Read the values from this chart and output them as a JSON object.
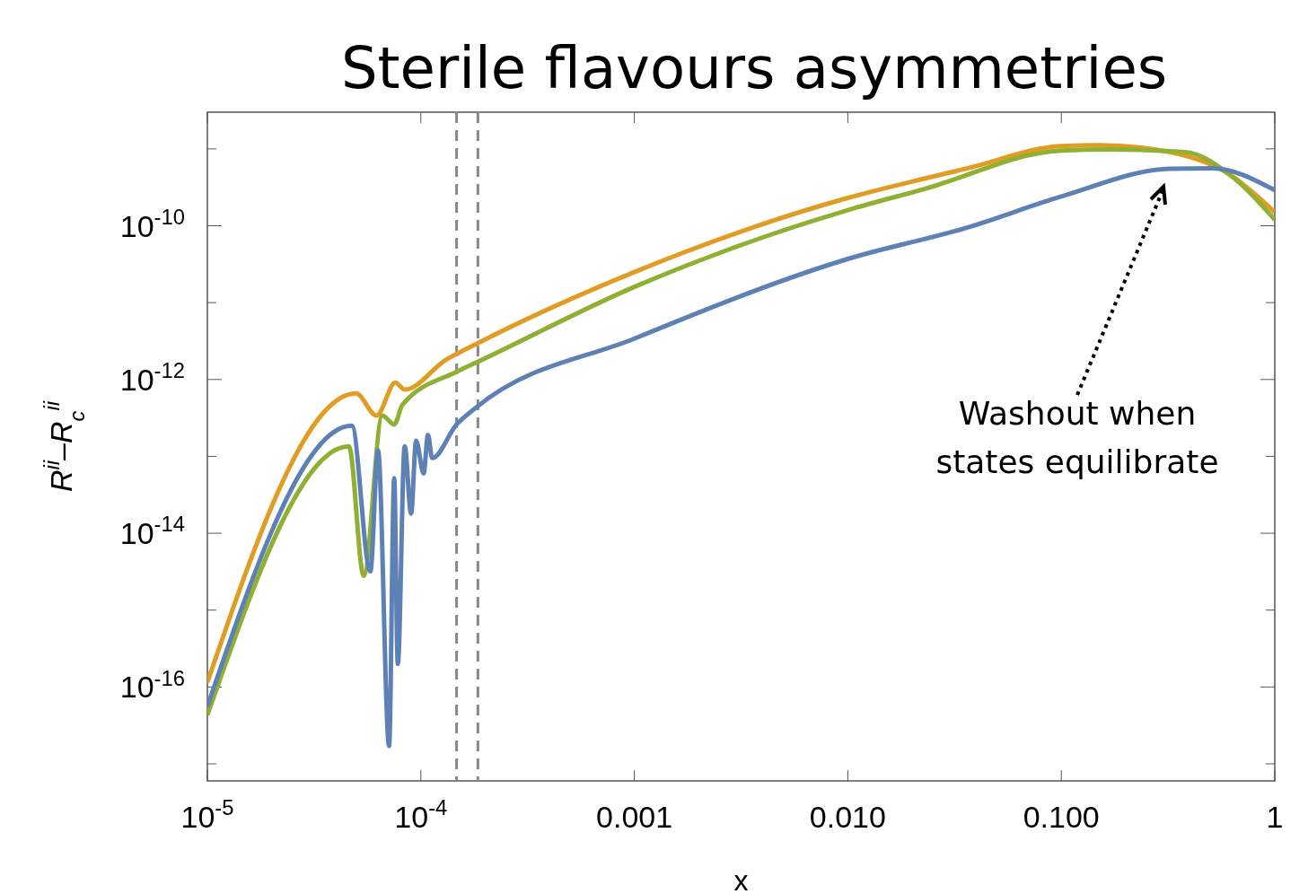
{
  "chart_data": {
    "type": "line",
    "title": "Sterile flavours asymmetries",
    "xlabel": "x",
    "ylabel": "R$^{ii}$–R$_{c}$$^{ii}$",
    "log": "xy",
    "grid": false,
    "line_style": "solid",
    "marker": "none",
    "xlim": [
      1e-05,
      1
    ],
    "xticks": [
      {
        "value": 1e-05,
        "label": "10$^{-5}$"
      },
      {
        "value": 0.0001,
        "label": "10$^{-4}$"
      },
      {
        "value": 0.001,
        "label": "0.001"
      },
      {
        "value": 0.01,
        "label": "0.010"
      },
      {
        "value": 0.1,
        "label": "0.100"
      },
      {
        "value": 1,
        "label": "1"
      }
    ],
    "ylim": [
      6e-18,
      3e-09
    ],
    "yticks": [
      {
        "value": 1e-17,
        "label": null
      },
      {
        "value": 1e-16,
        "label": "10$^{-16}$"
      },
      {
        "value": 1e-15,
        "label": null
      },
      {
        "value": 1e-14,
        "label": "10$^{-14}$"
      },
      {
        "value": 1e-13,
        "label": null
      },
      {
        "value": 1e-12,
        "label": "10$^{-12}$"
      },
      {
        "value": 1e-11,
        "label": null
      },
      {
        "value": 1e-10,
        "label": "10$^{-10}$"
      },
      {
        "value": 1e-09,
        "label": null
      }
    ],
    "ref_lines": [
      {
        "axis": "x",
        "value": 0.000147,
        "color": "#888888",
        "line_style": "dashed"
      },
      {
        "axis": "x",
        "value": 0.000185,
        "color": "#888888",
        "line_style": "dashed"
      }
    ],
    "annotations": [
      "Washout when\nstates equilibrate"
    ],
    "series": [
      {
        "color": "#e19c24",
        "x": [
          1e-05,
          4.97e-05,
          6.2e-05,
          7.6e-05,
          8.4e-05,
          0.000131,
          0.000186,
          0.001,
          0.01,
          0.0228,
          0.0364,
          0.1,
          0.15,
          0.32,
          0.61,
          1
        ],
        "values": [
          1.15e-16,
          6.6e-13,
          3.4e-13,
          9.1e-13,
          7.4e-13,
          1.8e-12,
          3e-12,
          2.5e-11,
          2.3e-10,
          4.1e-10,
          5.6e-10,
          1.09e-09,
          1.12e-09,
          9.1e-10,
          4.7e-10,
          1.5e-10
        ]
      },
      {
        "color": "#8fb032",
        "x": [
          1e-05,
          4.6e-05,
          5.4e-05,
          6.6e-05,
          7.5e-05,
          8.2e-05,
          0.000147,
          0.000185,
          0.001,
          0.01,
          0.0228,
          0.1,
          0.17,
          0.38,
          0.61,
          1
        ],
        "values": [
          4.3e-17,
          1.35e-13,
          2.8e-15,
          3.4e-13,
          2.6e-13,
          4.7e-13,
          1.26e-12,
          1.7e-12,
          1.6e-11,
          1.6e-10,
          3e-10,
          9.5e-10,
          9.8e-10,
          9.1e-10,
          4.7e-10,
          1.2e-10
        ]
      },
      {
        "color": "#5e81b5",
        "x": [
          1e-05,
          4.75e-05,
          5.8e-05,
          6.3e-05,
          7.1e-05,
          7.5e-05,
          7.8e-05,
          8.4e-05,
          9e-05,
          9.5e-05,
          0.000103,
          0.000108,
          0.000113,
          0.000147,
          0.000183,
          0.001,
          0.01,
          0.0364,
          0.1,
          0.32,
          0.51,
          1
        ],
        "values": [
          5.6e-17,
          2.5e-13,
          3.2e-15,
          1.2e-13,
          1.7e-17,
          5.2e-14,
          2e-16,
          1.35e-13,
          1.8e-14,
          1.6e-13,
          6e-14,
          1.9e-13,
          9.5e-14,
          2.6e-13,
          4.4e-13,
          3.4e-12,
          3.7e-11,
          9.5e-11,
          2.4e-10,
          5.5e-10,
          5.6e-10,
          2.9e-10
        ]
      }
    ]
  }
}
